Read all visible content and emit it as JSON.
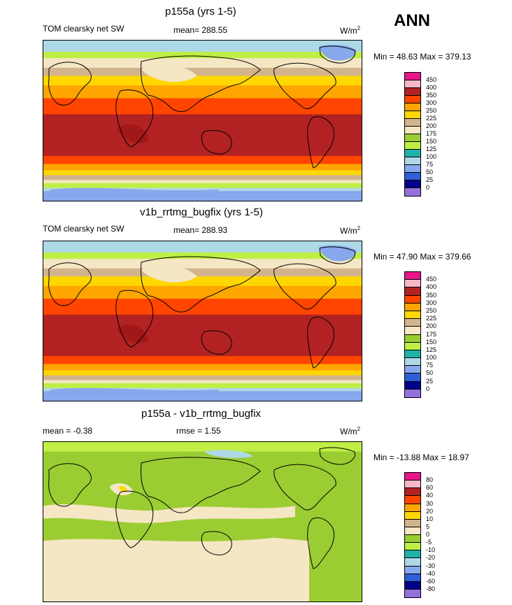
{
  "season": "ANN",
  "units_label": "W/m",
  "units_sup": "2",
  "chart_data": [
    {
      "type": "heatmap",
      "title": "p155a (yrs 1-5)",
      "variable": "TOM clearsky net SW",
      "mean_label": "mean= 288.55",
      "minmax_label": "Min =  48.63 Max = 379.13",
      "min": 48.63,
      "max": 379.13,
      "mean": 288.55,
      "levels": [
        "450",
        "400",
        "350",
        "300",
        "250",
        "225",
        "200",
        "175",
        "150",
        "125",
        "100",
        "75",
        "50",
        "25",
        "0"
      ],
      "colors": [
        "#e8168c",
        "#f5b8c8",
        "#b22222",
        "#ff4500",
        "#ffa500",
        "#ffd700",
        "#d2b48c",
        "#f5e6c4",
        "#9acd32",
        "#bfef45",
        "#20b2aa",
        "#add8e6",
        "#87a8ec",
        "#2e5fd4",
        "#00008b",
        "#9370db"
      ]
    },
    {
      "type": "heatmap",
      "title": "v1b_rrtmg_bugfix (yrs 1-5)",
      "variable": "TOM clearsky net SW",
      "mean_label": "mean= 288.93",
      "minmax_label": "Min =  47.90 Max = 379.66",
      "min": 47.9,
      "max": 379.66,
      "mean": 288.93,
      "levels": [
        "450",
        "400",
        "350",
        "300",
        "250",
        "225",
        "200",
        "175",
        "150",
        "125",
        "100",
        "75",
        "50",
        "25",
        "0"
      ],
      "colors": [
        "#e8168c",
        "#f5b8c8",
        "#b22222",
        "#ff4500",
        "#ffa500",
        "#ffd700",
        "#d2b48c",
        "#f5e6c4",
        "#9acd32",
        "#bfef45",
        "#20b2aa",
        "#add8e6",
        "#87a8ec",
        "#2e5fd4",
        "#00008b",
        "#9370db"
      ]
    },
    {
      "type": "heatmap",
      "title": "p155a - v1b_rrtmg_bugfix",
      "mean_label": "mean =  -0.38",
      "rmse_label": "rmse =   1.55",
      "minmax_label": "Min = -13.88 Max =  18.97",
      "min": -13.88,
      "max": 18.97,
      "mean": -0.38,
      "rmse": 1.55,
      "levels": [
        "80",
        "60",
        "40",
        "30",
        "20",
        "10",
        "5",
        "0",
        "-5",
        "-10",
        "-20",
        "-30",
        "-40",
        "-60",
        "-80"
      ],
      "colors": [
        "#e8168c",
        "#f5b8c8",
        "#b22222",
        "#ff4500",
        "#ffa500",
        "#ffd700",
        "#d2b48c",
        "#f5e6c4",
        "#9acd32",
        "#bfef45",
        "#20b2aa",
        "#add8e6",
        "#87a8ec",
        "#2e5fd4",
        "#00008b",
        "#9370db"
      ]
    }
  ]
}
